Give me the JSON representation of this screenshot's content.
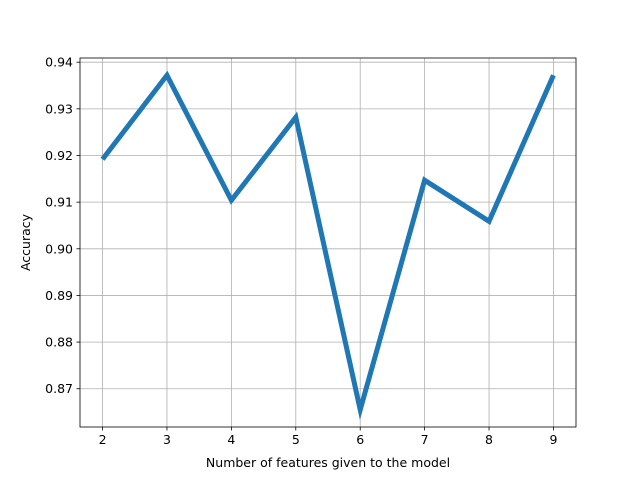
{
  "chart_data": {
    "type": "line",
    "title": "",
    "xlabel": "Number of features given to the model",
    "ylabel": "Accuracy",
    "x": [
      2,
      3,
      4,
      5,
      6,
      7,
      8,
      9
    ],
    "series": [
      {
        "values": [
          0.9192,
          0.9372,
          0.9104,
          0.9282,
          0.8655,
          0.9147,
          0.9059,
          0.9372
        ]
      }
    ],
    "xlim": [
      1.65,
      9.35
    ],
    "ylim": [
      0.8618,
      0.9409
    ],
    "xticks": [
      2,
      3,
      4,
      5,
      6,
      7,
      8,
      9
    ],
    "xtick_labels": [
      "2",
      "3",
      "4",
      "5",
      "6",
      "7",
      "8",
      "9"
    ],
    "yticks": [
      0.87,
      0.88,
      0.89,
      0.9,
      0.91,
      0.92,
      0.93,
      0.94
    ],
    "ytick_labels": [
      "0.87",
      "0.88",
      "0.89",
      "0.90",
      "0.91",
      "0.92",
      "0.93",
      "0.94"
    ],
    "grid": true,
    "legend": "none",
    "colors": {
      "line": "#1f77b4",
      "grid": "#b0b0b0",
      "axes": "#000000"
    }
  }
}
